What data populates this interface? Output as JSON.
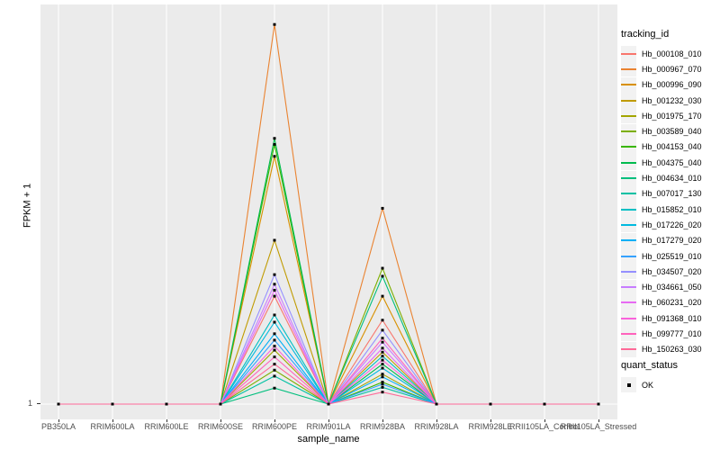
{
  "chart_data": {
    "type": "line",
    "title": "",
    "xlabel": "sample_name",
    "ylabel": "FPKM + 1",
    "x_categories": [
      "PB350LA",
      "RRIM600LA",
      "RRIM600LE",
      "RRIM600SE",
      "RRIM600PE",
      "RRIM901LA",
      "RRIM928BA",
      "RRIM928LA",
      "RRIM928LE",
      "RRII105LA_Control",
      "RRII105LA_Stressed"
    ],
    "y_ticks": [
      {
        "label": "1",
        "value": 0
      }
    ],
    "y_scale_note": "Only the break at 1 (baseline, FPKM+1) is labeled; series values are estimated relative heights (fraction of panel height above the baseline).",
    "grid": "vertical white gridlines at each category on gray panel",
    "legend": {
      "title": "tracking_id",
      "position": "right"
    },
    "legend2": {
      "title": "quant_status",
      "items": [
        {
          "label": "OK",
          "marker": "black-square"
        }
      ]
    },
    "panel_bg": "#EBEBEB",
    "grid_color": "#FFFFFF",
    "point_color": "#000000",
    "series": [
      {
        "name": "Hb_000108_010",
        "color": "#F8766D",
        "values": [
          0,
          0,
          0,
          0,
          0.27,
          0,
          0.21,
          0,
          0,
          0,
          0
        ]
      },
      {
        "name": "Hb_000967_070",
        "color": "#EA8331",
        "values": [
          0,
          0,
          0,
          0,
          0.95,
          0,
          0.49,
          0,
          0,
          0,
          0
        ]
      },
      {
        "name": "Hb_000996_090",
        "color": "#D89000",
        "values": [
          0,
          0,
          0,
          0,
          0.62,
          0,
          0.27,
          0,
          0,
          0,
          0
        ]
      },
      {
        "name": "Hb_001232_030",
        "color": "#C09B00",
        "values": [
          0,
          0,
          0,
          0,
          0.41,
          0,
          0.13,
          0,
          0,
          0,
          0
        ]
      },
      {
        "name": "Hb_001975_170",
        "color": "#A3A500",
        "values": [
          0,
          0,
          0,
          0,
          0.135,
          0,
          0.075,
          0,
          0,
          0,
          0
        ]
      },
      {
        "name": "Hb_003589_040",
        "color": "#7CAE00",
        "values": [
          0,
          0,
          0,
          0,
          0.085,
          0,
          0.34,
          0,
          0,
          0,
          0
        ]
      },
      {
        "name": "Hb_004153_040",
        "color": "#39B600",
        "values": [
          0,
          0,
          0,
          0,
          0.65,
          0,
          0.055,
          0,
          0,
          0,
          0
        ]
      },
      {
        "name": "Hb_004375_040",
        "color": "#00BB4E",
        "values": [
          0,
          0,
          0,
          0,
          0.665,
          0,
          0.1,
          0,
          0,
          0,
          0
        ]
      },
      {
        "name": "Hb_004634_010",
        "color": "#00BF7D",
        "values": [
          0,
          0,
          0,
          0,
          0.04,
          0,
          0.32,
          0,
          0,
          0,
          0
        ]
      },
      {
        "name": "Hb_007017_130",
        "color": "#00C1A3",
        "values": [
          0,
          0,
          0,
          0,
          0.07,
          0,
          0.042,
          0,
          0,
          0,
          0
        ]
      },
      {
        "name": "Hb_015852_010",
        "color": "#00BFC4",
        "values": [
          0,
          0,
          0,
          0,
          0.223,
          0,
          0.12,
          0,
          0,
          0,
          0
        ]
      },
      {
        "name": "Hb_017226_020",
        "color": "#00BAE0",
        "values": [
          0,
          0,
          0,
          0,
          0.205,
          0,
          0.09,
          0,
          0,
          0,
          0
        ]
      },
      {
        "name": "Hb_017279_020",
        "color": "#00B0F6",
        "values": [
          0,
          0,
          0,
          0,
          0.176,
          0,
          0.068,
          0,
          0,
          0,
          0
        ]
      },
      {
        "name": "Hb_025519_010",
        "color": "#35A2FF",
        "values": [
          0,
          0,
          0,
          0,
          0.16,
          0,
          0.05,
          0,
          0,
          0,
          0
        ]
      },
      {
        "name": "Hb_034507_020",
        "color": "#9590FF",
        "values": [
          0,
          0,
          0,
          0,
          0.324,
          0,
          0.185,
          0,
          0,
          0,
          0
        ]
      },
      {
        "name": "Hb_034661_050",
        "color": "#C77CFF",
        "values": [
          0,
          0,
          0,
          0,
          0.3,
          0,
          0.155,
          0,
          0,
          0,
          0
        ]
      },
      {
        "name": "Hb_060231_020",
        "color": "#E76BF3",
        "values": [
          0,
          0,
          0,
          0,
          0.285,
          0,
          0.14,
          0,
          0,
          0,
          0
        ]
      },
      {
        "name": "Hb_091368_010",
        "color": "#FA62DB",
        "values": [
          0,
          0,
          0,
          0,
          0.145,
          0,
          0.11,
          0,
          0,
          0,
          0
        ]
      },
      {
        "name": "Hb_099777_010",
        "color": "#FF62BC",
        "values": [
          0,
          0,
          0,
          0,
          0.118,
          0,
          0.165,
          0,
          0,
          0,
          0
        ]
      },
      {
        "name": "Hb_150263_030",
        "color": "#FF6A98",
        "values": [
          0,
          0,
          0,
          0,
          0.1,
          0,
          0.03,
          0,
          0,
          0,
          0
        ]
      }
    ]
  }
}
